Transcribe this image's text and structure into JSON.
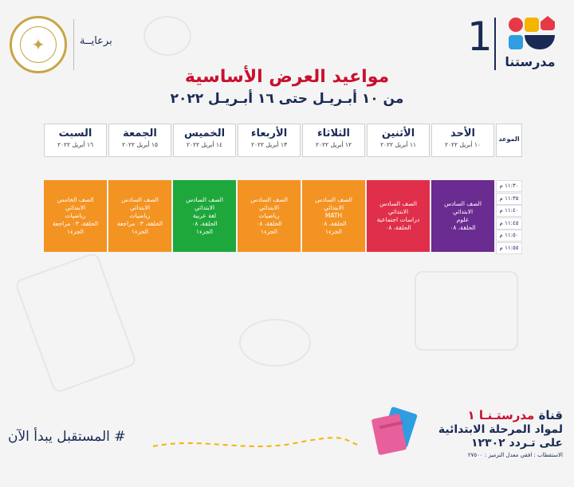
{
  "brand": {
    "number": "1",
    "name": "مدرستنا",
    "colors": {
      "red": "#e63946",
      "yellow": "#f4b400",
      "blue": "#2f9de0",
      "navy": "#1a2a55"
    }
  },
  "sponsor": {
    "label": "برعايــة",
    "logo_icon": "ministry-of-education-seal"
  },
  "title": "مواعيد العرض الأساسية",
  "subtitle": "من ١٠ أبـريـل حتى ١٦ أبـريـل ٢٠٢٢",
  "time_header": "الموعد",
  "days": [
    {
      "name": "الأحد",
      "date": "١٠ أبريل ٢٠٢٢"
    },
    {
      "name": "الأثنين",
      "date": "١١ أبريل ٢٠٢٢"
    },
    {
      "name": "الثلاثاء",
      "date": "١٢ أبريل ٢٠٢٢"
    },
    {
      "name": "الأربعاء",
      "date": "١٣ أبريل ٢٠٢٢"
    },
    {
      "name": "الخميس",
      "date": "١٤ أبريل ٢٠٢٢"
    },
    {
      "name": "الجمعة",
      "date": "١٥ أبريل ٢٠٢٢"
    },
    {
      "name": "السبت",
      "date": "١٦ أبريل ٢٠٢٢"
    }
  ],
  "times": [
    "١١:٣٠ م",
    "١١:٣٥ م",
    "١١:٤٠ م",
    "١١:٤٥ م",
    "١١:٥٠ م",
    "١١:٥٥ م"
  ],
  "slots": [
    {
      "color": "#6a2c91",
      "text_color": "#ffffff",
      "lines": [
        "الصف السادس الابتدائي",
        "علوم",
        "الحلقة، ٠٨"
      ]
    },
    {
      "color": "#e02f4a",
      "text_color": "#ffffff",
      "lines": [
        "الصف السادس الابتدائي",
        "دراسات اجتماعية",
        "الحلقة، ٠٨"
      ]
    },
    {
      "color": "#f39322",
      "text_color": "#ffffff",
      "lines": [
        "الصف السادس الابتدائي",
        "MATH",
        "الحلقة، ٠٨",
        "الجزء١"
      ]
    },
    {
      "color": "#f39322",
      "text_color": "#ffffff",
      "lines": [
        "الصف السادس الابتدائي",
        "رياضيات",
        "الحلقة، ٠٨",
        "الجزء١"
      ]
    },
    {
      "color": "#1ea83c",
      "text_color": "#ffffff",
      "lines": [
        "الصف السادس الابتدائي",
        "لغة عربية",
        "الحلقة، ٠٨",
        "الجزء١"
      ]
    },
    {
      "color": "#f39322",
      "text_color": "#ffffff",
      "lines": [
        "الصف السادس الابتدائي",
        "رياضيات",
        "الحلقة، ٠٣ مراجعة",
        "الجزء١"
      ]
    },
    {
      "color": "#f39322",
      "text_color": "#ffffff",
      "lines": [
        "الصف الخامس الابتدائي",
        "رياضيات",
        "الحلقة، ٠٣ مراجعة",
        "الجزء١"
      ]
    }
  ],
  "footer": {
    "slogan": "# المستقبل يبدأ الآن",
    "channel_prefix": "قناة",
    "channel_name": "مدرستـنـا ١",
    "line2": "لمواد المرحلة الابتدائية",
    "line3": "على تـردد ١٢٣٠٢",
    "line4": "الاستقطاب : افقي معدل الترميز : ٢٧٥٠٠"
  }
}
